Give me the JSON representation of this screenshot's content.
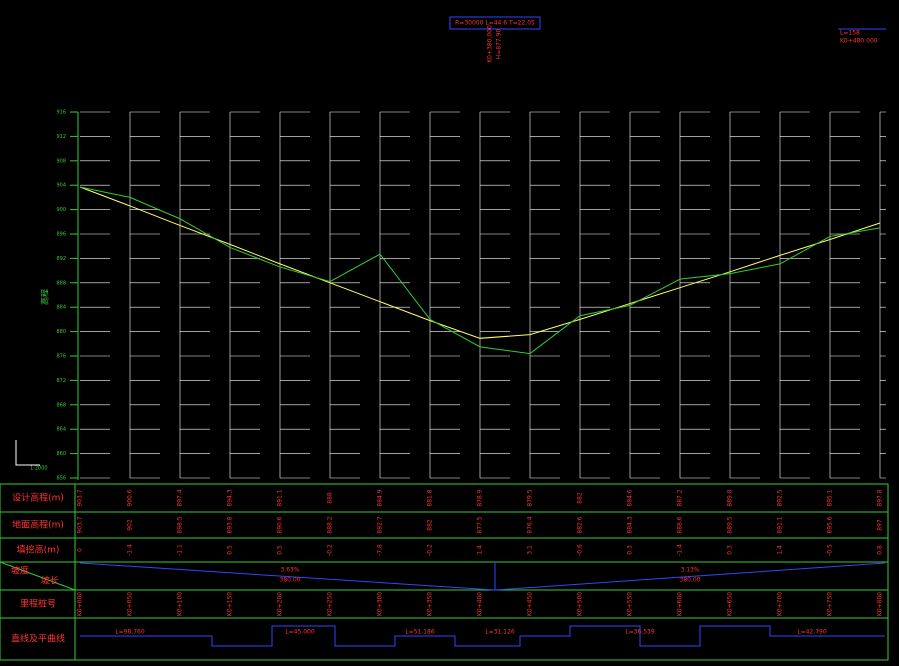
{
  "chart_data": {
    "type": "profile",
    "y_label": "高程",
    "scale_label": "1:2000",
    "curve_note": "R=30000  L=44.6  T=22.05",
    "curve_station": "K0+380.000",
    "curve_elev": "H=877.90",
    "corner_note": "L=158",
    "corner_station": "K0+480.000",
    "ylim": [
      856,
      916
    ],
    "yticks": [
      856,
      860,
      864,
      868,
      872,
      876,
      880,
      884,
      888,
      892,
      896,
      900,
      904,
      908,
      912,
      916
    ],
    "stations": [
      "K0+000",
      "K0+050",
      "K0+100",
      "K0+150",
      "K0+200",
      "K0+250",
      "K0+300",
      "K0+350",
      "K0+400",
      "K0+450",
      "K0+500",
      "K0+550",
      "K0+600",
      "K0+650",
      "K0+700",
      "K0+750",
      "K0+800"
    ],
    "series": [
      {
        "name": "设计高程(m)",
        "color": "#ffff66",
        "values": [
          903.7,
          900.6,
          897.4,
          894.3,
          891.1,
          888.0,
          884.9,
          881.8,
          878.9,
          879.5,
          882.0,
          884.6,
          887.2,
          889.8,
          892.5,
          895.1,
          897.8
        ]
      },
      {
        "name": "地面高程(m)",
        "color": "#33cc33",
        "values": [
          903.7,
          902.0,
          898.5,
          893.8,
          890.6,
          888.2,
          892.7,
          882.0,
          877.5,
          876.4,
          882.6,
          884.3,
          888.6,
          889.5,
          891.1,
          895.6,
          897.0
        ]
      }
    ],
    "fill_row": {
      "name": "填挖高(m)",
      "values": [
        0.0,
        -1.4,
        -1.1,
        0.5,
        0.5,
        -0.2,
        -7.8,
        -0.2,
        1.4,
        3.1,
        -0.6,
        0.3,
        -1.4,
        0.3,
        1.4,
        -0.5,
        0.8
      ]
    },
    "grade_row": {
      "name": "坡度",
      "sub": "坡长",
      "left_grade": "3.63%",
      "left_length": "380.00",
      "right_grade": "3.13%",
      "right_length": "380.00"
    },
    "station_row": {
      "name": "里程桩号"
    },
    "curve_row": {
      "name": "直线及平曲线",
      "labels": [
        "L=98.760",
        "L=45.000",
        "L=51.186",
        "L=31.126",
        "L=36.539",
        "L=42.790"
      ]
    }
  }
}
